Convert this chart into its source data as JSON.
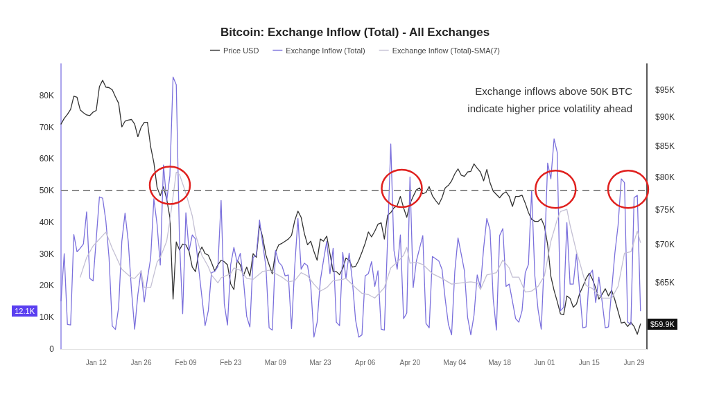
{
  "chart_data": {
    "type": "line",
    "title": "Bitcoin: Exchange Inflow (Total) - All Exchanges",
    "annotations": [
      "Exchange inflows above 50K BTC indicate higher price volatility ahead",
      "12.1K",
      "$59.9K"
    ],
    "x": [
      "--01-01",
      "--01-02",
      "--01-03",
      "--01-04",
      "--01-05",
      "--01-06",
      "--01-07",
      "--01-08",
      "--01-09",
      "--01-10",
      "--01-11",
      "--01-12",
      "--01-13",
      "--01-14",
      "--01-15",
      "--01-16",
      "--01-17",
      "--01-18",
      "--01-19",
      "--01-20",
      "--01-21",
      "--01-22",
      "--01-23",
      "--01-24",
      "--01-25",
      "--01-26",
      "--01-27",
      "--01-28",
      "--01-29",
      "--01-30",
      "--01-31",
      "--02-01",
      "--02-02",
      "--02-03",
      "--02-04",
      "--02-05",
      "--02-06",
      "--02-07",
      "--02-08",
      "--02-09",
      "--02-10",
      "--02-11",
      "--02-12",
      "--02-13",
      "--02-14",
      "--02-15",
      "--02-16",
      "--02-17",
      "--02-18",
      "--02-19",
      "--02-20",
      "--02-21",
      "--02-22",
      "--02-23",
      "--02-24",
      "--02-25",
      "--02-26",
      "--02-27",
      "--02-28",
      "--03-01",
      "--03-02",
      "--03-03",
      "--03-04",
      "--03-05",
      "--03-06",
      "--03-07",
      "--03-08",
      "--03-09",
      "--03-10",
      "--03-11",
      "--03-12",
      "--03-13",
      "--03-14",
      "--03-15",
      "--03-16",
      "--03-17",
      "--03-18",
      "--03-19",
      "--03-20",
      "--03-21",
      "--03-22",
      "--03-23",
      "--03-24",
      "--03-25",
      "--03-26",
      "--03-27",
      "--03-28",
      "--03-29",
      "--03-30",
      "--03-31",
      "--04-01",
      "--04-02",
      "--04-03",
      "--04-04",
      "--04-05",
      "--04-06",
      "--04-07",
      "--04-08",
      "--04-09",
      "--04-10",
      "--04-11",
      "--04-12",
      "--04-13",
      "--04-14",
      "--04-15",
      "--04-16",
      "--04-17",
      "--04-18",
      "--04-19",
      "--04-20",
      "--04-21",
      "--04-22",
      "--04-23",
      "--04-24",
      "--04-25",
      "--04-26",
      "--04-27",
      "--04-28",
      "--04-29",
      "--04-30",
      "--05-01",
      "--05-02",
      "--05-03",
      "--05-04",
      "--05-05",
      "--05-06",
      "--05-07",
      "--05-08",
      "--05-09",
      "--05-10",
      "--05-11",
      "--05-12",
      "--05-13",
      "--05-14",
      "--05-15",
      "--05-16",
      "--05-17",
      "--05-18",
      "--05-19",
      "--05-20",
      "--05-21",
      "--05-22",
      "--05-23",
      "--05-24",
      "--05-25",
      "--05-26",
      "--05-27",
      "--05-28",
      "--05-29",
      "--05-30",
      "--05-31",
      "--06-01",
      "--06-02",
      "--06-03",
      "--06-04",
      "--06-05",
      "--06-06",
      "--06-07",
      "--06-08",
      "--06-09",
      "--06-10",
      "--06-11",
      "--06-12",
      "--06-13",
      "--06-14",
      "--06-15",
      "--06-16",
      "--06-17",
      "--06-18",
      "--06-19",
      "--06-20",
      "--06-21",
      "--06-22",
      "--06-23",
      "--06-24",
      "--06-25",
      "--06-26",
      "--06-27",
      "--06-28",
      "--06-29",
      "--06-30",
      "--07-01"
    ],
    "series": [
      {
        "name": "Price USD",
        "color": "#333333",
        "axis": "y2",
        "values": [
          88800,
          89800,
          90500,
          91400,
          93800,
          93600,
          91300,
          90800,
          90400,
          90300,
          90900,
          91200,
          95600,
          96800,
          95500,
          95400,
          95000,
          93700,
          92500,
          88300,
          89300,
          89500,
          89600,
          88800,
          86600,
          88200,
          89100,
          89100,
          84900,
          82300,
          78400,
          77100,
          78500,
          76600,
          73900,
          62900,
          70400,
          69300,
          70100,
          70000,
          69100,
          67000,
          66400,
          68800,
          69700,
          68800,
          68600,
          67600,
          66500,
          67300,
          67900,
          67700,
          67300,
          64800,
          64100,
          67900,
          67300,
          65900,
          67000,
          65800,
          68800,
          68300,
          72800,
          71000,
          68600,
          67300,
          66100,
          69000,
          70000,
          70200,
          70500,
          70800,
          71300,
          73400,
          74800,
          73900,
          71600,
          70000,
          70500,
          69100,
          67900,
          70800,
          70500,
          71200,
          68800,
          66400,
          66400,
          66000,
          66800,
          68200,
          67900,
          67000,
          67100,
          67900,
          69000,
          70200,
          71800,
          71100,
          71900,
          72900,
          73100,
          70800,
          74200,
          74600,
          75300,
          75600,
          77000,
          75300,
          73900,
          75900,
          77000,
          78000,
          78300,
          77400,
          77600,
          78500,
          77100,
          76400,
          75800,
          76800,
          78300,
          78700,
          79400,
          80500,
          81300,
          80300,
          80100,
          80800,
          80900,
          82100,
          81400,
          80800,
          79400,
          81200,
          79100,
          77800,
          77300,
          76800,
          77400,
          77700,
          77000,
          75500,
          77000,
          77000,
          77200,
          76000,
          74600,
          73600,
          73300,
          73300,
          73700,
          72600,
          70000,
          65800,
          64000,
          62600,
          61100,
          61000,
          63300,
          63000,
          61900,
          62300,
          63600,
          64500,
          65500,
          66200,
          65400,
          64300,
          62900,
          63500,
          64200,
          63300,
          64000,
          62800,
          61400,
          60000,
          60100,
          59600,
          60100,
          59600,
          58700,
          59900
        ]
      },
      {
        "name": "Exchange Inflow (Total)",
        "color": "#7b70dc",
        "values": [
          15200,
          30100,
          7800,
          7600,
          36100,
          30700,
          31800,
          33200,
          43300,
          22300,
          21500,
          34700,
          48000,
          47600,
          40500,
          28900,
          7300,
          6200,
          13200,
          34000,
          42900,
          34000,
          18700,
          6300,
          17200,
          24700,
          14900,
          22300,
          28700,
          47400,
          39400,
          26500,
          58100,
          46700,
          54700,
          85800,
          83400,
          34300,
          11200,
          43000,
          31000,
          36000,
          34700,
          25500,
          16500,
          7400,
          12100,
          24100,
          24500,
          26000,
          46900,
          14300,
          7600,
          26700,
          32100,
          27400,
          30200,
          21600,
          10300,
          7000,
          28900,
          29600,
          40700,
          33200,
          26000,
          6700,
          6000,
          31100,
          27400,
          26300,
          23100,
          23400,
          6500,
          26000,
          41200,
          25200,
          27100,
          26300,
          20100,
          3800,
          8500,
          21600,
          28100,
          34000,
          23800,
          31800,
          8500,
          7400,
          30500,
          22300,
          30300,
          21600,
          9200,
          3800,
          4500,
          23100,
          23800,
          27600,
          19800,
          24700,
          6300,
          6000,
          34700,
          64700,
          31100,
          25200,
          36000,
          9600,
          11400,
          54300,
          19400,
          27800,
          31800,
          35800,
          8100,
          6700,
          29200,
          28500,
          27800,
          25200,
          15800,
          7800,
          4500,
          24500,
          35100,
          30000,
          24700,
          10000,
          4500,
          10700,
          23400,
          19400,
          31800,
          41200,
          37600,
          15800,
          6000,
          35800,
          38000,
          19800,
          20500,
          15100,
          9600,
          8500,
          12100,
          24100,
          26700,
          50100,
          23100,
          12500,
          6300,
          29600,
          58700,
          53700,
          66300,
          62000,
          12100,
          13200,
          39900,
          20500,
          20500,
          30000,
          18300,
          6700,
          7000,
          23400,
          24900,
          14700,
          22700,
          15100,
          6700,
          7000,
          18700,
          30300,
          39100,
          53700,
          52500,
          8500,
          7800,
          47800,
          48500,
          12100
        ]
      },
      {
        "name": "Exchange Inflow (Total)-SMA(7)",
        "color": "#c4c0d4",
        "x": [
          "--01-07",
          "--01-09",
          "--01-11",
          "--01-14",
          "--01-15",
          "--01-17",
          "--01-20",
          "--01-23",
          "--01-24",
          "--01-26",
          "--01-27",
          "--01-29",
          "--01-31",
          "--02-01",
          "--02-03",
          "--02-04",
          "--02-06",
          "--02-07",
          "--02-09",
          "--02-11",
          "--02-12",
          "--02-14",
          "--02-16",
          "--02-17",
          "--02-19",
          "--02-20",
          "--02-23",
          "--02-24",
          "--02-26",
          "--02-28",
          "--03-02",
          "--03-05",
          "--03-07",
          "--03-09",
          "--03-11",
          "--03-13",
          "--03-15",
          "--03-17",
          "--03-19",
          "--03-21",
          "--03-23",
          "--03-25",
          "--03-27",
          "--03-30",
          "--03-31",
          "--04-03",
          "--04-05",
          "--04-07",
          "--04-09",
          "--04-11",
          "--04-12",
          "--04-14",
          "--04-16",
          "--04-18",
          "--04-19",
          "--04-20",
          "--04-22",
          "--04-24",
          "--04-27",
          "--04-30",
          "--05-03",
          "--05-06",
          "--05-09",
          "--05-11",
          "--05-12",
          "--05-14",
          "--05-17",
          "--05-19",
          "--05-21",
          "--05-22",
          "--05-24",
          "--05-26",
          "--05-28",
          "--05-30",
          "--06-01",
          "--06-03",
          "--06-05",
          "--06-06",
          "--06-08",
          "--06-09",
          "--06-11",
          "--06-12",
          "--06-14",
          "--06-16",
          "--06-17",
          "--06-19",
          "--06-21",
          "--06-22",
          "--06-24",
          "--06-26",
          "--06-28",
          "--06-30",
          "--07-01"
        ],
        "values": [
          22700,
          28900,
          32500,
          35800,
          36900,
          31800,
          25200,
          22500,
          22300,
          24500,
          19400,
          19400,
          27400,
          28900,
          34000,
          40500,
          55800,
          55100,
          49200,
          42000,
          36100,
          29600,
          26000,
          23400,
          20900,
          22500,
          23800,
          25600,
          24900,
          22300,
          22000,
          24500,
          24900,
          23800,
          22700,
          21200,
          21600,
          24100,
          23100,
          20500,
          18300,
          19400,
          21600,
          22000,
          22300,
          19400,
          17600,
          17200,
          16100,
          18300,
          19400,
          25600,
          27400,
          29600,
          32100,
          27100,
          27400,
          26700,
          23800,
          22300,
          20500,
          20900,
          21200,
          20900,
          18800,
          23400,
          24100,
          28100,
          25600,
          22700,
          22700,
          18000,
          18300,
          19800,
          23100,
          34000,
          40900,
          43400,
          44100,
          39100,
          30700,
          27400,
          20100,
          19100,
          18000,
          16100,
          16100,
          16100,
          19800,
          30300,
          30700,
          37200,
          33600
        ]
      }
    ],
    "xlim": [
      "--01-01",
      "--07-03"
    ],
    "xticks": [
      {
        "value": "--01-12",
        "label": "Jan 12"
      },
      {
        "value": "--01-26",
        "label": "Jan 26"
      },
      {
        "value": "--02-09",
        "label": "Feb 09"
      },
      {
        "value": "--02-23",
        "label": "Feb 23"
      },
      {
        "value": "--03-09",
        "label": "Mar 09"
      },
      {
        "value": "--03-23",
        "label": "Mar 23"
      },
      {
        "value": "--04-06",
        "label": "Apr 06"
      },
      {
        "value": "--04-20",
        "label": "Apr 20"
      },
      {
        "value": "--05-04",
        "label": "May 04"
      },
      {
        "value": "--05-18",
        "label": "May 18"
      },
      {
        "value": "--06-01",
        "label": "Jun 01"
      },
      {
        "value": "--06-15",
        "label": "Jun 15"
      },
      {
        "value": "--06-29",
        "label": "Jun 29"
      }
    ],
    "ylim": [
      0,
      90000
    ],
    "yticks": [
      0,
      {
        "value": 10000,
        "label": "10K"
      },
      {
        "value": 20000,
        "label": "20K"
      },
      {
        "value": 30000,
        "label": "30K"
      },
      {
        "value": 40000,
        "label": "40K"
      },
      {
        "value": 50000,
        "label": "50K"
      },
      {
        "value": 60000,
        "label": "60K"
      },
      {
        "value": 70000,
        "label": "70K"
      },
      {
        "value": 80000,
        "label": "80K"
      }
    ],
    "y2lim": [
      57000,
      100000
    ],
    "y2ticks": [
      {
        "value": 65000,
        "label": "$65K"
      },
      {
        "value": 70000,
        "label": "$70K"
      },
      {
        "value": 75000,
        "label": "$75K"
      },
      {
        "value": 80000,
        "label": "$80K"
      },
      {
        "value": 85000,
        "label": "$85K"
      },
      {
        "value": 90000,
        "label": "$90K"
      },
      {
        "value": 95000,
        "label": "$95K"
      }
    ],
    "log": "y2",
    "legend": "top",
    "marker": "none",
    "ref_lines": [
      {
        "axis": "y",
        "value": 50000,
        "color": "#8c8c8c",
        "line_style": "dashed"
      }
    ]
  }
}
